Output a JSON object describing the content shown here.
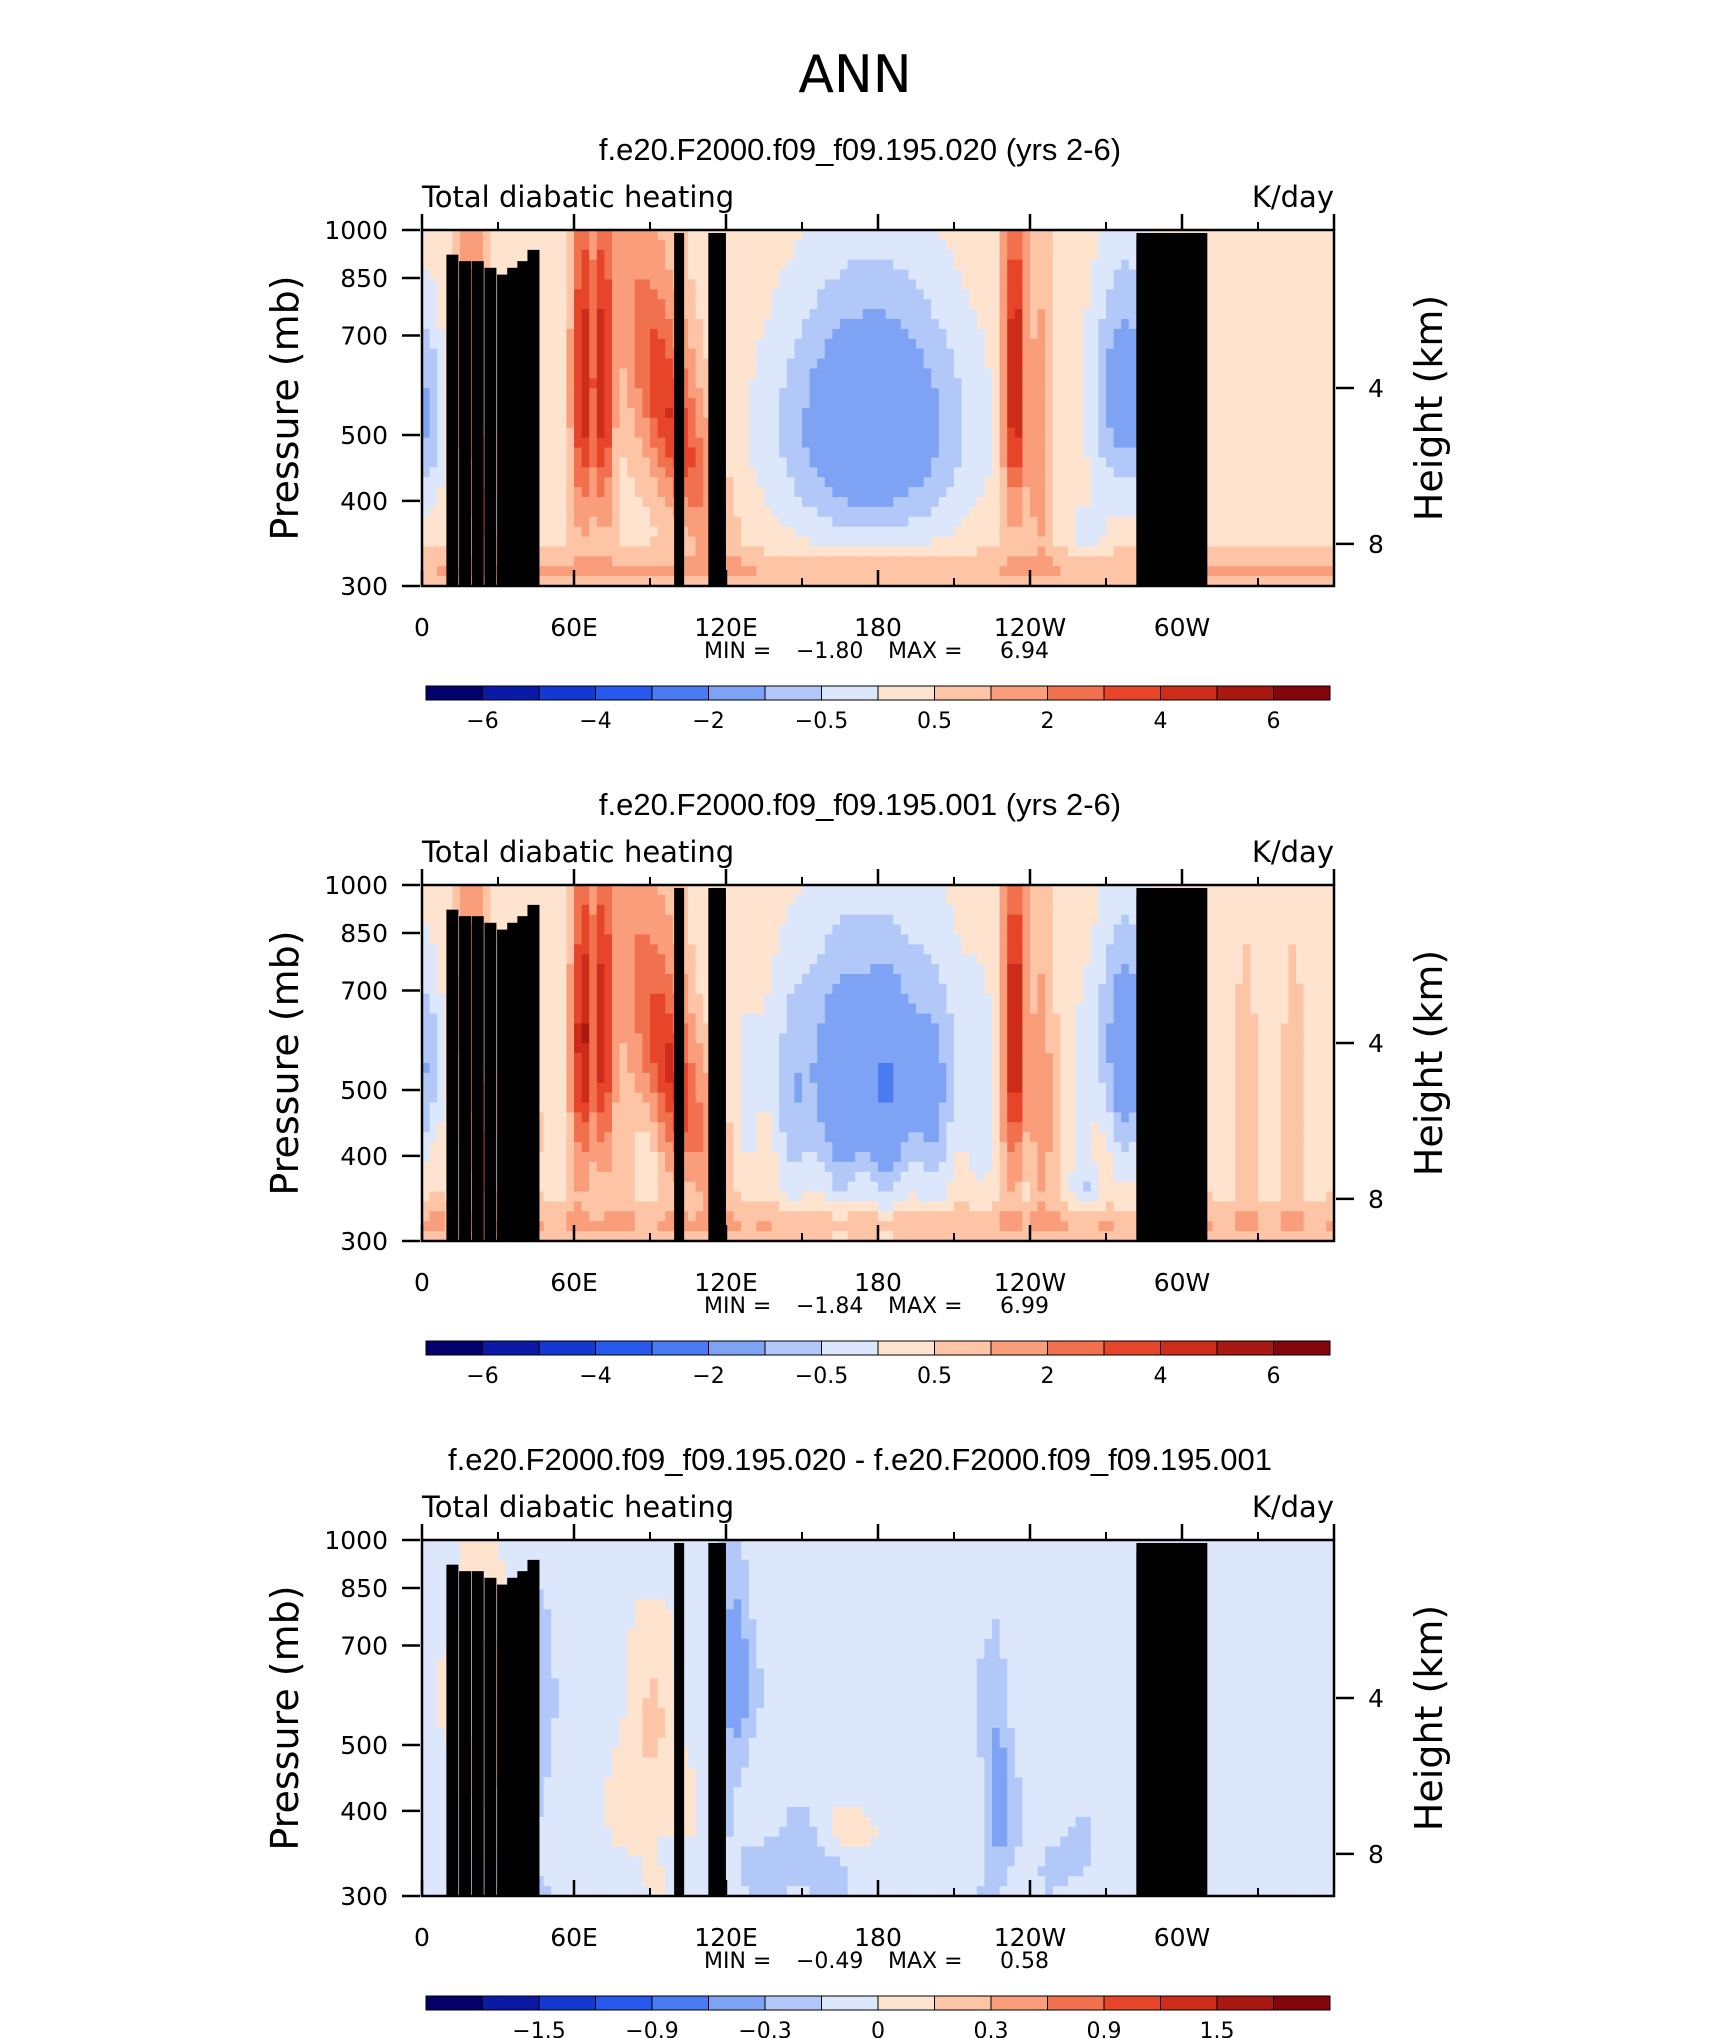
{
  "figure_title": "ANN",
  "colors": {
    "blue_red_16": [
      "#04006b",
      "#0a1aa6",
      "#1439d3",
      "#2759ef",
      "#4b7bf2",
      "#7ea3f5",
      "#b2c8f8",
      "#dce7fb",
      "#fee4cf",
      "#fdc4a6",
      "#f99d7a",
      "#f1714f",
      "#e6452a",
      "#cd2c1a",
      "#a91912",
      "#82060c"
    ],
    "mask": "#000000",
    "frame": "#000000"
  },
  "chart_data": [
    {
      "type": "heatmap",
      "title": "f.e20.F2000.f09_f09.195.020 (yrs 2-6)",
      "left_label": "Total diabatic heating",
      "right_label": "K/day",
      "ylabel": "Pressure (mb)",
      "ylabel_right": "Height (km)",
      "x_ticks": [
        "0",
        "60E",
        "120E",
        "180",
        "120W",
        "60W"
      ],
      "y_ticks": [
        "300",
        "400",
        "500",
        "700",
        "850",
        "1000"
      ],
      "y_right_ticks": [
        "8",
        "4"
      ],
      "xlim": [
        0,
        360
      ],
      "ylim": [
        1000,
        300
      ],
      "y_scale": "log",
      "stats": {
        "min_label": "MIN =",
        "min": "−1.80",
        "max_label": "MAX =",
        "max": "6.94"
      },
      "colorbar_labels": [
        "−6",
        "−4",
        "−2",
        "−0.5",
        "0.5",
        "2",
        "4",
        "6"
      ]
    },
    {
      "type": "heatmap",
      "title": "f.e20.F2000.f09_f09.195.001 (yrs 2-6)",
      "left_label": "Total diabatic heating",
      "right_label": "K/day",
      "ylabel": "Pressure (mb)",
      "ylabel_right": "Height (km)",
      "x_ticks": [
        "0",
        "60E",
        "120E",
        "180",
        "120W",
        "60W"
      ],
      "y_ticks": [
        "300",
        "400",
        "500",
        "700",
        "850",
        "1000"
      ],
      "y_right_ticks": [
        "8",
        "4"
      ],
      "xlim": [
        0,
        360
      ],
      "ylim": [
        1000,
        300
      ],
      "y_scale": "log",
      "stats": {
        "min_label": "MIN =",
        "min": "−1.84",
        "max_label": "MAX =",
        "max": "6.99"
      },
      "colorbar_labels": [
        "−6",
        "−4",
        "−2",
        "−0.5",
        "0.5",
        "2",
        "4",
        "6"
      ]
    },
    {
      "type": "heatmap",
      "title": "f.e20.F2000.f09_f09.195.020 - f.e20.F2000.f09_f09.195.001",
      "left_label": "Total diabatic heating",
      "right_label": "K/day",
      "ylabel": "Pressure (mb)",
      "ylabel_right": "Height (km)",
      "x_ticks": [
        "0",
        "60E",
        "120E",
        "180",
        "120W",
        "60W"
      ],
      "y_ticks": [
        "300",
        "400",
        "500",
        "700",
        "850",
        "1000"
      ],
      "y_right_ticks": [
        "8",
        "4"
      ],
      "xlim": [
        0,
        360
      ],
      "ylim": [
        1000,
        300
      ],
      "y_scale": "log",
      "stats": {
        "min_label": "MIN =",
        "min": "−0.49",
        "max_label": "MAX =",
        "max": "0.58"
      },
      "colorbar_labels": [
        "−1.5",
        "−0.9",
        "−0.3",
        "0",
        "0.3",
        "0.9",
        "1.5"
      ]
    }
  ]
}
